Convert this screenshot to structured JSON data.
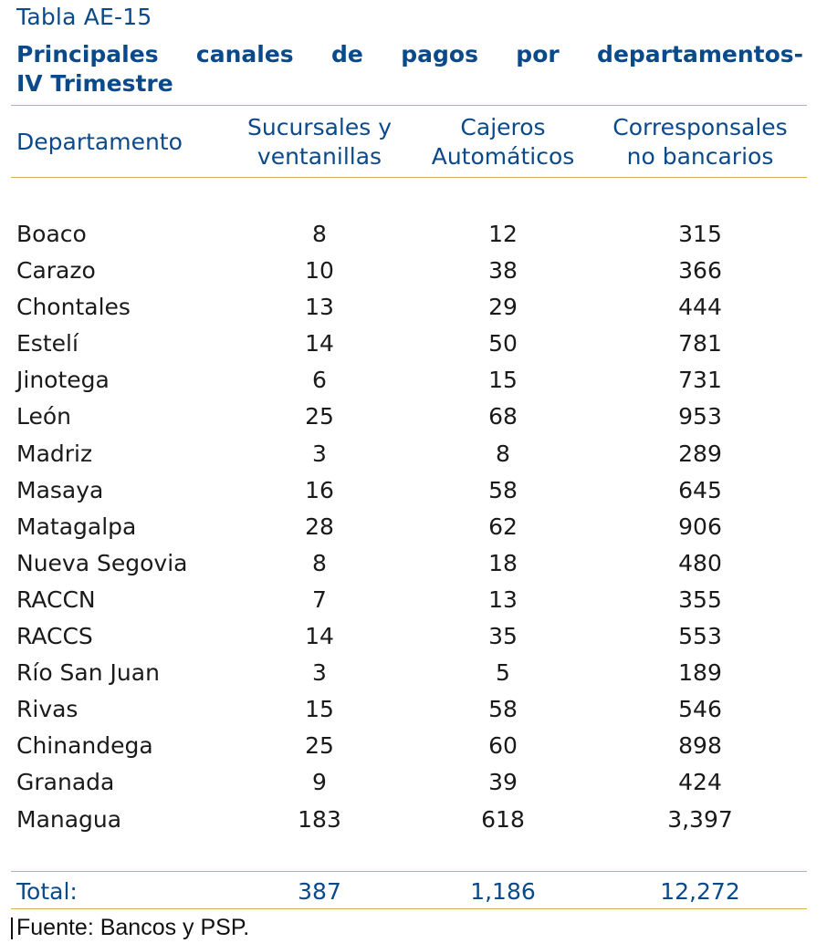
{
  "table_label": "Tabla AE-15",
  "title_line1": "Principales canales de pagos por departamentos-",
  "title_line2": "IV Trimestre",
  "headers": {
    "departamento": "Departamento",
    "sucursales_line1": "Sucursales y",
    "sucursales_line2": "ventanillas",
    "cajeros_line1": "Cajeros",
    "cajeros_line2": "Automáticos",
    "corresponsales_line1": "Corresponsales",
    "corresponsales_line2": "no bancarios"
  },
  "rows": [
    {
      "departamento": "Boaco",
      "sucursales": "8",
      "cajeros": "12",
      "corresponsales": "315"
    },
    {
      "departamento": "Carazo",
      "sucursales": "10",
      "cajeros": "38",
      "corresponsales": "366"
    },
    {
      "departamento": "Chontales",
      "sucursales": "13",
      "cajeros": "29",
      "corresponsales": "444"
    },
    {
      "departamento": "Estelí",
      "sucursales": "14",
      "cajeros": "50",
      "corresponsales": "781"
    },
    {
      "departamento": "Jinotega",
      "sucursales": "6",
      "cajeros": "15",
      "corresponsales": "731"
    },
    {
      "departamento": "León",
      "sucursales": "25",
      "cajeros": "68",
      "corresponsales": "953"
    },
    {
      "departamento": "Madriz",
      "sucursales": "3",
      "cajeros": "8",
      "corresponsales": "289"
    },
    {
      "departamento": "Masaya",
      "sucursales": "16",
      "cajeros": "58",
      "corresponsales": "645"
    },
    {
      "departamento": "Matagalpa",
      "sucursales": "28",
      "cajeros": "62",
      "corresponsales": "906"
    },
    {
      "departamento": "Nueva Segovia",
      "sucursales": "8",
      "cajeros": "18",
      "corresponsales": "480"
    },
    {
      "departamento": "RACCN",
      "sucursales": "7",
      "cajeros": "13",
      "corresponsales": "355"
    },
    {
      "departamento": "RACCS",
      "sucursales": "14",
      "cajeros": "35",
      "corresponsales": "553"
    },
    {
      "departamento": "Río San Juan",
      "sucursales": "3",
      "cajeros": "5",
      "corresponsales": "189"
    },
    {
      "departamento": "Rivas",
      "sucursales": "15",
      "cajeros": "58",
      "corresponsales": "546"
    },
    {
      "departamento": "Chinandega",
      "sucursales": "25",
      "cajeros": "60",
      "corresponsales": "898"
    },
    {
      "departamento": "Granada",
      "sucursales": "9",
      "cajeros": "39",
      "corresponsales": "424"
    },
    {
      "departamento": "Managua",
      "sucursales": "183",
      "cajeros": "618",
      "corresponsales": "3,397"
    }
  ],
  "total": {
    "label": "Total:",
    "sucursales": "387",
    "cajeros": "1,186",
    "corresponsales": "12,272"
  },
  "source": "Fuente: Bancos y PSP.",
  "colors": {
    "accent_blue": "#0b4a8a",
    "rule_gold": "#d6b25e"
  }
}
